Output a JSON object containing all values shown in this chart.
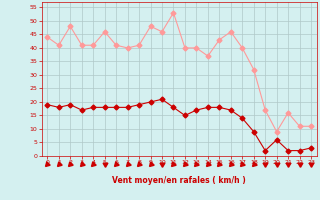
{
  "x": [
    0,
    1,
    2,
    3,
    4,
    5,
    6,
    7,
    8,
    9,
    10,
    11,
    12,
    13,
    14,
    15,
    16,
    17,
    18,
    19,
    20,
    21,
    22,
    23
  ],
  "wind_avg": [
    19,
    18,
    19,
    17,
    18,
    18,
    18,
    18,
    19,
    20,
    21,
    18,
    15,
    17,
    18,
    18,
    17,
    14,
    9,
    2,
    6,
    2,
    2,
    3
  ],
  "wind_gust": [
    44,
    41,
    48,
    41,
    41,
    46,
    41,
    40,
    41,
    48,
    46,
    53,
    40,
    40,
    37,
    43,
    46,
    40,
    32,
    17,
    9,
    16,
    11,
    11
  ],
  "wind_dirs": [
    225,
    225,
    225,
    225,
    225,
    270,
    225,
    225,
    225,
    225,
    270,
    225,
    225,
    225,
    225,
    225,
    225,
    225,
    225,
    270,
    270,
    270,
    270,
    270
  ],
  "xlabel": "Vent moyen/en rafales ( km/h )",
  "xlim_min": -0.5,
  "xlim_max": 23.5,
  "ylim_min": 0,
  "ylim_max": 57,
  "yticks": [
    0,
    5,
    10,
    15,
    20,
    25,
    30,
    35,
    40,
    45,
    50,
    55
  ],
  "xticks": [
    0,
    1,
    2,
    3,
    4,
    5,
    6,
    7,
    8,
    9,
    10,
    11,
    12,
    13,
    14,
    15,
    16,
    17,
    18,
    19,
    20,
    21,
    22,
    23
  ],
  "avg_color": "#cc0000",
  "gust_color": "#ff9999",
  "bg_color": "#d4f0f0",
  "grid_color": "#b0c8c8",
  "label_color": "#cc0000",
  "marker_size": 2.5,
  "line_width": 0.8
}
